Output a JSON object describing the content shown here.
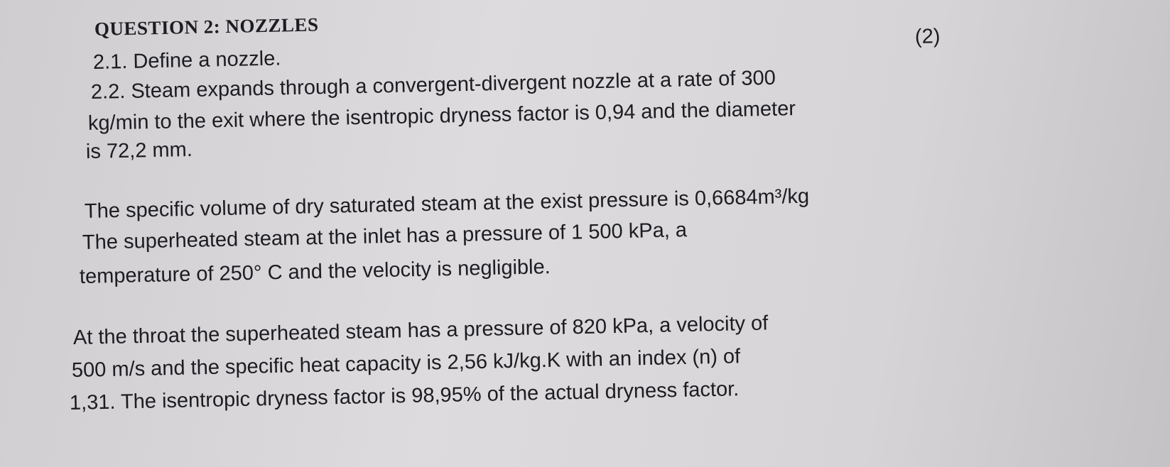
{
  "header": {
    "title": "QUESTION 2: NOZZLES",
    "marks": "(2)"
  },
  "lines": [
    "2.1. Define a nozzle.",
    "2.2. Steam expands through a convergent-divergent nozzle at a rate of 300",
    "kg/min to the exit where the isentropic dryness factor is 0,94 and the diameter",
    "is 72,2 mm.",
    "The specific volume of dry saturated steam at the exist pressure is 0,6684m³/kg",
    "The superheated steam at the inlet has a pressure of 1 500 kPa, a",
    "temperature of 250° C and the velocity is negligible.",
    "At the throat the superheated steam has a pressure of 820 kPa, a velocity of",
    "500 m/s and the specific heat capacity is 2,56 kJ/kg.K with an index (n) of",
    "1,31. The isentropic dryness factor is 98,95% of the actual dryness factor."
  ]
}
